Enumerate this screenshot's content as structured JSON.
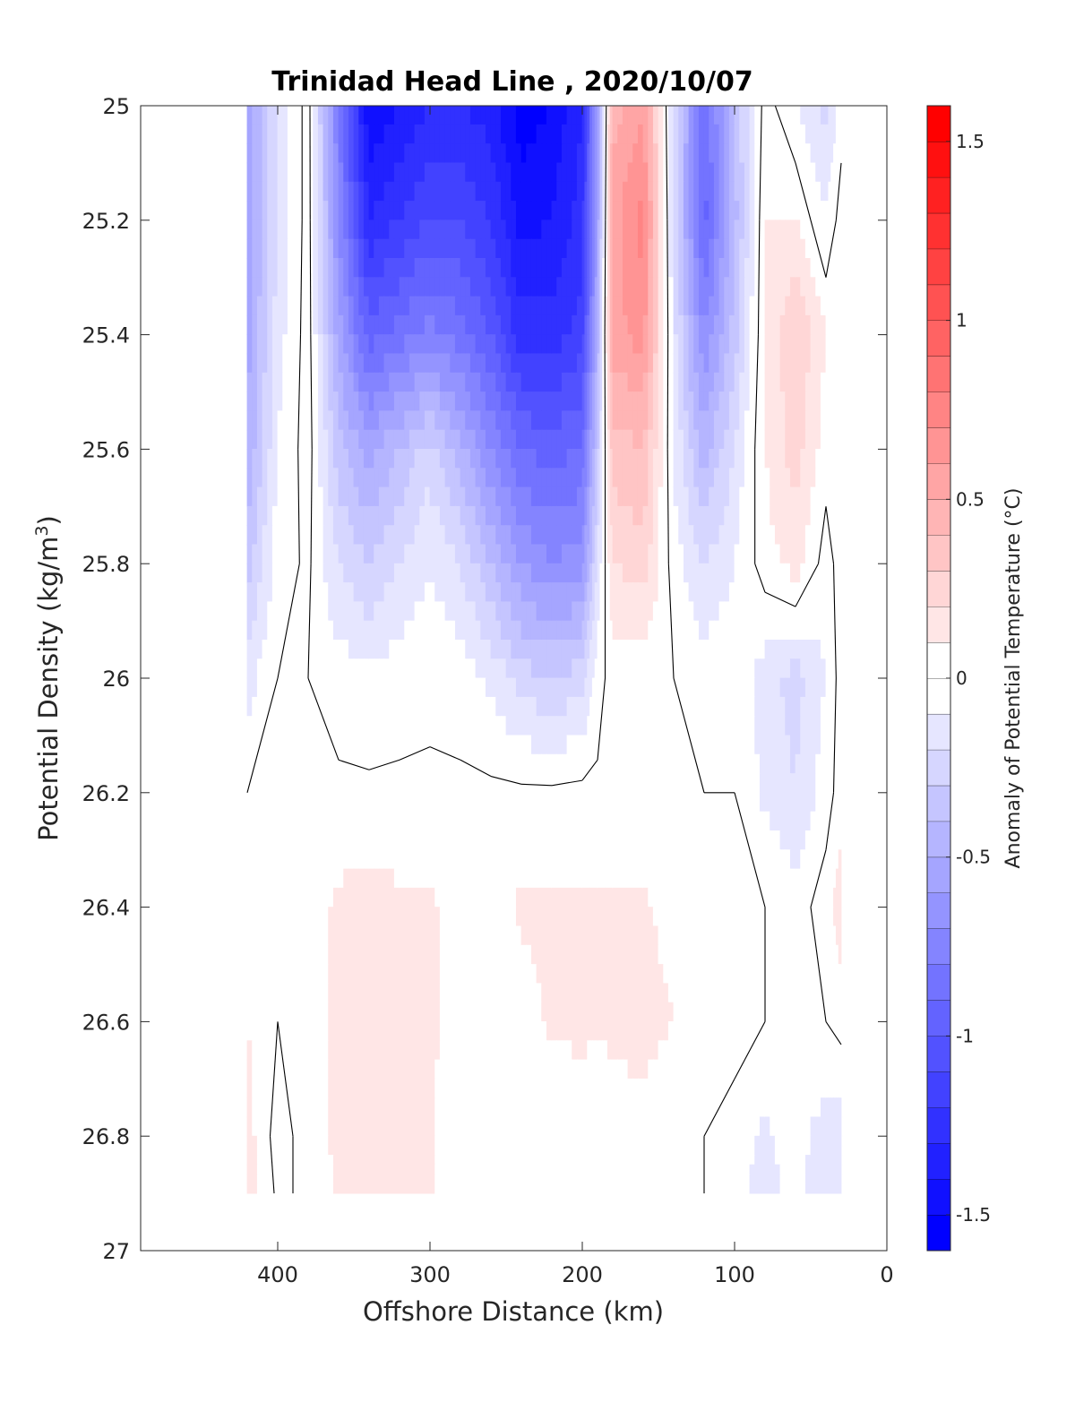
{
  "chart_data": {
    "type": "heatmap",
    "title": "Trinidad Head Line , 2020/10/07",
    "xlabel": "Offshore Distance (km)",
    "ylabel": "Potential Density (kg/m",
    "ylabel_superscript": "3",
    "ylabel_suffix": ")",
    "colorbar_label": "Anomaly of Potential Temperature (°C)",
    "xlim": [
      490,
      0
    ],
    "ylim": [
      25,
      27
    ],
    "y_reversed": true,
    "x_reversed": true,
    "x_ticks": [
      400,
      300,
      200,
      100,
      0
    ],
    "x_tick_labels": [
      "400",
      "300",
      "200",
      "100",
      "0"
    ],
    "y_ticks": [
      25,
      25.2,
      25.4,
      25.6,
      25.8,
      26,
      26.2,
      26.4,
      26.6,
      26.8,
      27
    ],
    "y_tick_labels": [
      "25",
      "25.2",
      "25.4",
      "25.6",
      "25.8",
      "26",
      "26.2",
      "26.4",
      "26.6",
      "26.8",
      "27"
    ],
    "colorbar_range": [
      -1.6,
      1.6
    ],
    "colorbar_step": 0.1,
    "colorbar_ticks": [
      1.5,
      1,
      0.5,
      0,
      -0.5,
      -1,
      -1.5
    ],
    "colorbar_tick_labels": [
      "1.5",
      "1",
      "0.5",
      "0",
      "-0.5",
      "-1",
      "-1.5"
    ],
    "colors": {
      "cold": "#0000ff",
      "warm": "#ff0000",
      "neutral": "#ffffff",
      "contour": "#000000"
    },
    "data_extent_x": [
      420,
      30
    ],
    "data_extent_y": [
      25,
      26.9
    ],
    "grid": false,
    "anomaly_field": {
      "x": [
        420,
        400,
        380,
        360,
        340,
        320,
        300,
        280,
        260,
        240,
        220,
        200,
        190,
        180,
        160,
        140,
        120,
        100,
        80,
        60,
        40,
        30
      ],
      "y": [
        25,
        25.2,
        25.4,
        25.6,
        25.8,
        26,
        26.2,
        26.4,
        26.6,
        26.8,
        26.9
      ],
      "values": [
        [
          -0.6,
          -0.2,
          0.05,
          -0.8,
          -1.5,
          -1.4,
          -1.3,
          -1.3,
          -1.35,
          -1.55,
          -1.5,
          -1.3,
          -0.6,
          0.45,
          0.6,
          -0.2,
          -0.9,
          -0.4,
          0.05,
          -0.1,
          -0.25,
          -0.05
        ],
        [
          -0.6,
          -0.2,
          0.05,
          -0.7,
          -1.3,
          -1.2,
          -1.1,
          -1.1,
          -1.2,
          -1.45,
          -1.4,
          -1.25,
          -0.6,
          0.55,
          0.75,
          -0.2,
          -0.95,
          -0.45,
          0.1,
          0.1,
          -0.1,
          0.05
        ],
        [
          -0.55,
          -0.15,
          0.05,
          -0.55,
          -0.95,
          -0.85,
          -0.75,
          -0.85,
          -1.0,
          -1.25,
          -1.25,
          -1.15,
          -0.5,
          0.55,
          0.65,
          -0.15,
          -0.7,
          -0.35,
          0.1,
          0.3,
          0.1,
          0.1
        ],
        [
          -0.5,
          -0.1,
          0.05,
          -0.35,
          -0.55,
          -0.4,
          -0.25,
          -0.45,
          -0.7,
          -0.9,
          -0.95,
          -0.9,
          -0.35,
          0.35,
          0.4,
          -0.1,
          -0.45,
          -0.2,
          0.1,
          0.25,
          0.05,
          0.05
        ],
        [
          -0.35,
          -0.05,
          0.02,
          -0.2,
          -0.3,
          -0.2,
          -0.1,
          -0.2,
          -0.4,
          -0.6,
          -0.7,
          -0.65,
          -0.2,
          0.2,
          0.25,
          -0.05,
          -0.2,
          -0.1,
          0.05,
          0.15,
          -0.05,
          0.05
        ],
        [
          -0.15,
          0.0,
          0.0,
          -0.05,
          -0.08,
          -0.05,
          -0.03,
          -0.05,
          -0.12,
          -0.25,
          -0.3,
          -0.25,
          -0.05,
          0.05,
          0.05,
          0.0,
          -0.05,
          -0.02,
          -0.15,
          -0.25,
          -0.1,
          0.05
        ],
        [
          0.0,
          0.0,
          0.0,
          0.02,
          0.02,
          0.02,
          0.02,
          0.02,
          0.02,
          0.02,
          0.02,
          0.03,
          0.02,
          0.02,
          0.02,
          0.0,
          0.0,
          0.0,
          -0.12,
          -0.2,
          -0.05,
          0.05
        ],
        [
          0.05,
          0.0,
          0.05,
          0.12,
          0.15,
          0.12,
          0.12,
          0.05,
          0.05,
          0.12,
          0.12,
          0.12,
          0.12,
          0.12,
          0.12,
          0.05,
          0.02,
          0.05,
          0.0,
          -0.05,
          0.05,
          0.15
        ],
        [
          0.1,
          0.0,
          0.05,
          0.12,
          0.12,
          0.12,
          0.12,
          0.05,
          0.02,
          0.05,
          0.12,
          0.12,
          0.12,
          0.12,
          0.15,
          0.1,
          0.02,
          0.05,
          0.0,
          -0.05,
          0.0,
          0.05
        ],
        [
          0.15,
          -0.05,
          0.05,
          0.12,
          0.12,
          0.15,
          0.12,
          0.02,
          0.0,
          0.02,
          0.02,
          0.05,
          0.02,
          0.05,
          0.05,
          0.02,
          0.0,
          -0.05,
          -0.12,
          -0.05,
          -0.15,
          -0.2
        ],
        [
          0.15,
          -0.02,
          0.02,
          0.12,
          0.12,
          0.15,
          0.12,
          0.0,
          0.0,
          0.0,
          0.0,
          0.02,
          0.0,
          0.0,
          0.02,
          0.0,
          0.0,
          -0.05,
          -0.15,
          -0.05,
          -0.2,
          -0.2
        ]
      ]
    }
  }
}
